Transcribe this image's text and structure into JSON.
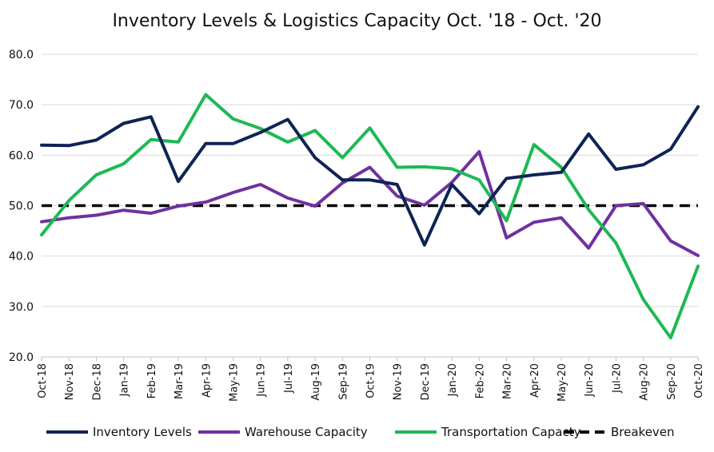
{
  "chart_data": {
    "type": "line",
    "title": "Inventory Levels & Logistics Capacity Oct. '18 - Oct. '20",
    "xlabel": "",
    "ylabel": "",
    "ylim": [
      20,
      80
    ],
    "yticks": [
      "20.0",
      "30.0",
      "40.0",
      "50.0",
      "60.0",
      "70.0",
      "80.0"
    ],
    "grid": "horizontal",
    "legend_position": "bottom",
    "categories": [
      "Oct-18",
      "Nov-18",
      "Dec-18",
      "Jan-19",
      "Feb-19",
      "Mar-19",
      "Apr-19",
      "May-19",
      "Jun-19",
      "Jul-19",
      "Aug-19",
      "Sep-19",
      "Oct-19",
      "Nov-19",
      "Dec-19",
      "Jan-20",
      "Feb-20",
      "Mar-20",
      "Apr-20",
      "May-20",
      "Jun-20",
      "Jul-20",
      "Aug-20",
      "Sep-20",
      "Oct-20"
    ],
    "series": [
      {
        "name": "Inventory Levels",
        "color": "#0f2355",
        "dashed": false,
        "values": [
          62.0,
          61.9,
          63.0,
          66.3,
          67.6,
          54.8,
          62.3,
          62.3,
          64.5,
          67.1,
          59.5,
          55.1,
          55.1,
          54.2,
          42.2,
          54.2,
          48.4,
          55.4,
          56.1,
          56.6,
          64.2,
          57.2,
          58.1,
          61.2,
          69.6
        ]
      },
      {
        "name": "Warehouse Capacity",
        "color": "#7030a0",
        "dashed": false,
        "values": [
          46.8,
          47.6,
          48.1,
          49.1,
          48.5,
          49.9,
          50.7,
          52.6,
          54.2,
          51.5,
          49.9,
          54.5,
          57.6,
          51.9,
          50.1,
          54.6,
          60.7,
          43.6,
          46.7,
          47.6,
          41.6,
          50.0,
          50.4,
          43.0,
          40.1
        ]
      },
      {
        "name": "Transportation Capacty",
        "color": "#1db954",
        "dashed": false,
        "values": [
          44.2,
          51.0,
          56.1,
          58.3,
          63.1,
          62.6,
          72.0,
          67.2,
          65.3,
          62.6,
          64.9,
          59.5,
          65.4,
          57.6,
          57.7,
          57.3,
          55.1,
          47.0,
          62.1,
          57.6,
          49.2,
          42.6,
          31.4,
          23.8,
          38.0
        ]
      },
      {
        "name": "Breakeven",
        "color": "#000000",
        "dashed": true,
        "values": [
          50,
          50,
          50,
          50,
          50,
          50,
          50,
          50,
          50,
          50,
          50,
          50,
          50,
          50,
          50,
          50,
          50,
          50,
          50,
          50,
          50,
          50,
          50,
          50,
          50
        ]
      }
    ]
  }
}
